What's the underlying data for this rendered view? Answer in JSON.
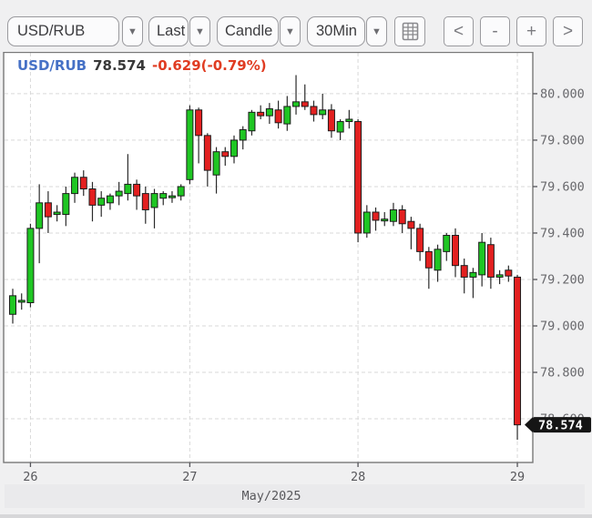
{
  "toolbar": {
    "symbol": "USD/RUB",
    "price_type": "Last",
    "chart_type": "Candle",
    "interval": "30Min",
    "dropdown_arrow": "▼",
    "nav": {
      "prev": "<",
      "zoom_out": "-",
      "zoom_in": "+",
      "next": ">"
    }
  },
  "legend": {
    "symbol": "USD/RUB",
    "price": "78.574",
    "change": "-0.629(-0.79%)"
  },
  "colors": {
    "up": "#1fc623",
    "down": "#e32020",
    "candle_stroke": "#1c1c1c",
    "grid": "#d9d9d9",
    "frame": "#787878",
    "axis_text": "#68686c",
    "tag_bg": "#151515",
    "tag_text": "#ffffff",
    "legend_symbol": "#4671c6",
    "legend_change": "#e03c22"
  },
  "chart_data": {
    "type": "candlestick",
    "title": "USD/RUB 30-minute candlestick chart",
    "interval": "30Min",
    "x_axis": {
      "month_label": "May/2025",
      "ticks": [
        {
          "label": "26",
          "index": 2
        },
        {
          "label": "27",
          "index": 20
        },
        {
          "label": "28",
          "index": 39
        },
        {
          "label": "29",
          "index": 57
        }
      ]
    },
    "y_axis": {
      "min": 78.412,
      "max": 80.18,
      "tick_values": [
        80.0,
        79.8,
        79.6,
        79.4,
        79.2,
        79.0,
        78.8,
        78.6
      ],
      "tick_labels": [
        "80.000",
        "79.800",
        "79.600",
        "79.400",
        "79.200",
        "79.000",
        "78.800",
        "78.600"
      ]
    },
    "last_price": {
      "value": 78.574,
      "label": "78.574"
    },
    "candles_format": [
      "open",
      "high",
      "low",
      "close"
    ],
    "candles": [
      [
        79.05,
        79.16,
        79.01,
        79.13
      ],
      [
        79.11,
        79.14,
        79.07,
        79.11
      ],
      [
        79.1,
        79.44,
        79.08,
        79.42
      ],
      [
        79.42,
        79.61,
        79.27,
        79.53
      ],
      [
        79.53,
        79.58,
        79.4,
        79.47
      ],
      [
        79.48,
        79.52,
        79.45,
        79.49
      ],
      [
        79.48,
        79.6,
        79.43,
        79.57
      ],
      [
        79.57,
        79.66,
        79.53,
        79.64
      ],
      [
        79.64,
        79.67,
        79.56,
        79.59
      ],
      [
        79.59,
        79.62,
        79.45,
        79.52
      ],
      [
        79.52,
        79.58,
        79.47,
        79.55
      ],
      [
        79.53,
        79.57,
        79.5,
        79.56
      ],
      [
        79.56,
        79.62,
        79.52,
        79.58
      ],
      [
        79.57,
        79.74,
        79.54,
        79.61
      ],
      [
        79.61,
        79.63,
        79.5,
        79.56
      ],
      [
        79.57,
        79.6,
        79.44,
        79.5
      ],
      [
        79.51,
        79.59,
        79.42,
        79.57
      ],
      [
        79.55,
        79.58,
        79.52,
        79.57
      ],
      [
        79.56,
        79.58,
        79.53,
        79.56
      ],
      [
        79.56,
        79.61,
        79.54,
        79.6
      ],
      [
        79.63,
        79.95,
        79.61,
        79.93
      ],
      [
        79.93,
        79.94,
        79.7,
        79.82
      ],
      [
        79.82,
        79.83,
        79.6,
        79.67
      ],
      [
        79.65,
        79.77,
        79.57,
        79.75
      ],
      [
        79.75,
        79.77,
        79.69,
        79.73
      ],
      [
        79.73,
        79.82,
        79.7,
        79.8
      ],
      [
        79.8,
        79.86,
        79.76,
        79.845
      ],
      [
        79.84,
        79.93,
        79.82,
        79.92
      ],
      [
        79.92,
        79.95,
        79.89,
        79.905
      ],
      [
        79.905,
        79.96,
        79.87,
        79.935
      ],
      [
        79.93,
        79.97,
        79.85,
        79.875
      ],
      [
        79.87,
        79.99,
        79.84,
        79.945
      ],
      [
        79.945,
        80.08,
        79.91,
        79.965
      ],
      [
        79.965,
        80.04,
        79.93,
        79.945
      ],
      [
        79.945,
        79.97,
        79.88,
        79.91
      ],
      [
        79.91,
        80.0,
        79.89,
        79.93
      ],
      [
        79.93,
        79.955,
        79.81,
        79.84
      ],
      [
        79.835,
        79.89,
        79.8,
        79.88
      ],
      [
        79.88,
        79.93,
        79.85,
        79.89
      ],
      [
        79.88,
        79.89,
        79.36,
        79.4
      ],
      [
        79.4,
        79.52,
        79.38,
        79.49
      ],
      [
        79.49,
        79.51,
        79.41,
        79.455
      ],
      [
        79.46,
        79.49,
        79.43,
        79.46
      ],
      [
        79.45,
        79.53,
        79.43,
        79.5
      ],
      [
        79.5,
        79.52,
        79.4,
        79.44
      ],
      [
        79.45,
        79.47,
        79.33,
        79.42
      ],
      [
        79.42,
        79.44,
        79.28,
        79.32
      ],
      [
        79.32,
        79.34,
        79.16,
        79.25
      ],
      [
        79.24,
        79.35,
        79.19,
        79.33
      ],
      [
        79.32,
        79.4,
        79.28,
        79.39
      ],
      [
        79.39,
        79.42,
        79.21,
        79.26
      ],
      [
        79.26,
        79.29,
        79.14,
        79.21
      ],
      [
        79.21,
        79.25,
        79.12,
        79.23
      ],
      [
        79.22,
        79.4,
        79.17,
        79.36
      ],
      [
        79.35,
        79.38,
        79.16,
        79.21
      ],
      [
        79.21,
        79.24,
        79.18,
        79.22
      ],
      [
        79.24,
        79.26,
        79.19,
        79.215
      ],
      [
        79.21,
        79.22,
        78.51,
        78.574
      ]
    ]
  }
}
